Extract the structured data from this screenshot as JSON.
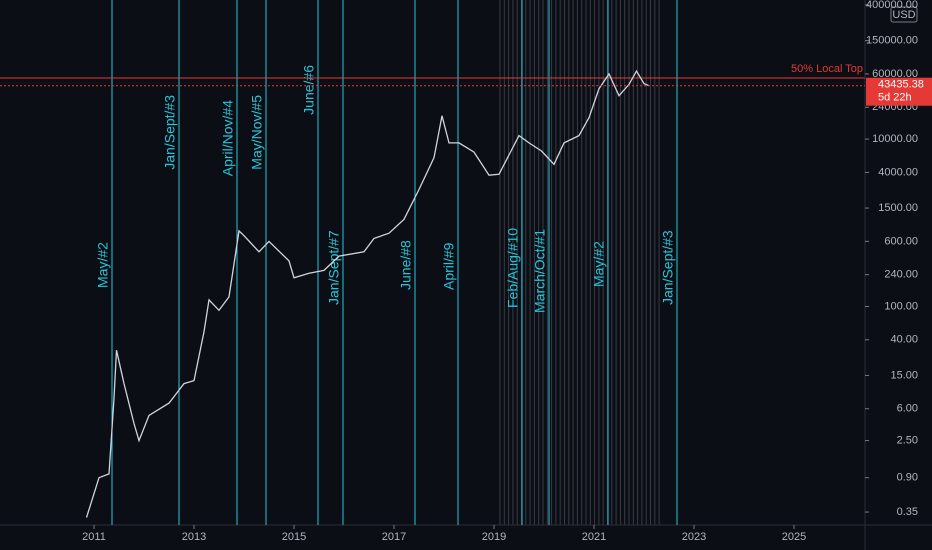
{
  "chart_data": {
    "type": "line",
    "currency": "USD",
    "log_scale": true,
    "x": [
      2010.85,
      2011.1,
      2011.3,
      2011.4,
      2011.45,
      2011.6,
      2011.8,
      2011.9,
      2012.1,
      2012.5,
      2012.8,
      2013.0,
      2013.2,
      2013.3,
      2013.5,
      2013.7,
      2013.9,
      2014.0,
      2014.3,
      2014.5,
      2014.9,
      2015.0,
      2015.3,
      2015.6,
      2015.9,
      2016.4,
      2016.6,
      2016.9,
      2017.2,
      2017.5,
      2017.8,
      2017.96,
      2018.1,
      2018.3,
      2018.6,
      2018.9,
      2019.1,
      2019.5,
      2019.7,
      2019.95,
      2020.2,
      2020.4,
      2020.7,
      2020.9,
      2021.1,
      2021.3,
      2021.5,
      2021.7,
      2021.85,
      2022.0,
      2022.1
    ],
    "series": [
      {
        "color": "#d1d4dc",
        "values": [
          0.3,
          0.9,
          1.0,
          8,
          30,
          12,
          4,
          2.5,
          5,
          7,
          12,
          13,
          50,
          120,
          90,
          130,
          800,
          700,
          450,
          600,
          350,
          220,
          250,
          270,
          400,
          450,
          650,
          750,
          1100,
          2500,
          6000,
          19000,
          9000,
          9000,
          7000,
          3700,
          3800,
          11000,
          9000,
          7200,
          5000,
          9000,
          11000,
          18000,
          40000,
          60000,
          33000,
          45000,
          65000,
          46000,
          43435
        ]
      }
    ],
    "xlim": [
      2009.12,
      2026.42
    ],
    "xticks": [
      2011,
      2013,
      2015,
      2017,
      2019,
      2021,
      2023,
      2025
    ],
    "ylim": [
      0.245,
      459000
    ],
    "yticks": [
      {
        "value": 400000,
        "label": "400000.00"
      },
      {
        "value": 150000,
        "label": "150000.00"
      },
      {
        "value": 60000,
        "label": "60000.00"
      },
      {
        "value": 24000,
        "label": "24000.00"
      },
      {
        "value": 10000,
        "label": "10000.00"
      },
      {
        "value": 4000,
        "label": "4000.00"
      },
      {
        "value": 1500,
        "label": "1500.00"
      },
      {
        "value": 600,
        "label": "600.00"
      },
      {
        "value": 240,
        "label": "240.00"
      },
      {
        "value": 100,
        "label": "100.00"
      },
      {
        "value": 40,
        "label": "40.00"
      },
      {
        "value": 15,
        "label": "15.00"
      },
      {
        "value": 6,
        "label": "6.00"
      },
      {
        "value": 2.5,
        "label": "2.50"
      },
      {
        "value": 0.9,
        "label": "0.90"
      },
      0.35
    ],
    "vlines_color": "#26c6da",
    "annotations": [
      {
        "label": "May/#2",
        "x": 2011.36
      },
      {
        "label": "Jan/Sept/#3",
        "x": 2012.7
      },
      {
        "label": "April/Nov/#4",
        "x": 2013.86
      },
      {
        "label": "May/Nov/#5",
        "x": 2014.44
      },
      {
        "label": "June/#6",
        "x": 2015.48
      },
      {
        "label": "Jan/Sept/#7",
        "x": 2015.98
      },
      {
        "label": "June/#8",
        "x": 2017.42
      },
      {
        "label": "April/#9",
        "x": 2018.28
      },
      {
        "label": "Feb/Aug/#10",
        "x": 2019.56
      },
      {
        "label": "March/Oct/#1",
        "x": 2020.1
      },
      {
        "label": "May/#2",
        "x": 2021.28
      },
      {
        "label": "Jan/Sept/#3",
        "x": 2022.66
      }
    ],
    "hline": {
      "label": "50% Local Top",
      "value": 53600,
      "color": "#e53935"
    },
    "last_price": {
      "value": 43435.38,
      "countdown": "5d 22h",
      "color": "#e53935"
    }
  }
}
